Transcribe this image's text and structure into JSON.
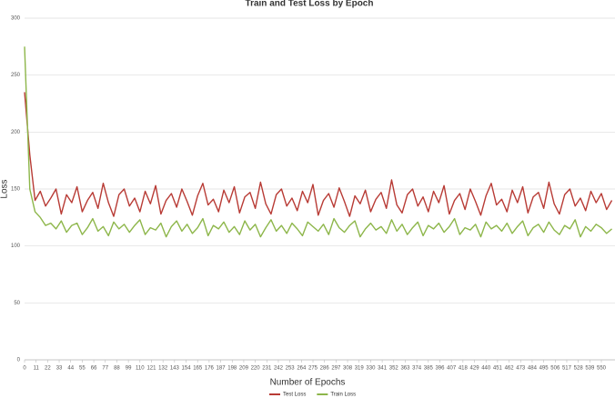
{
  "chart_data": {
    "type": "line",
    "title": "Train and Test Loss by Epoch",
    "x_label": "Number of Epochs",
    "y_label": "Loss",
    "x": [
      0,
      5,
      10,
      15,
      20,
      25,
      30,
      35,
      40,
      45,
      50,
      55,
      60,
      65,
      70,
      75,
      80,
      85,
      90,
      95,
      100,
      105,
      110,
      115,
      120,
      125,
      130,
      135,
      140,
      145,
      150,
      155,
      160,
      165,
      170,
      175,
      180,
      185,
      190,
      195,
      200,
      205,
      210,
      215,
      220,
      225,
      230,
      235,
      240,
      245,
      250,
      255,
      260,
      265,
      270,
      275,
      280,
      285,
      290,
      295,
      300,
      305,
      310,
      315,
      320,
      325,
      330,
      335,
      340,
      345,
      350,
      355,
      360,
      365,
      370,
      375,
      380,
      385,
      390,
      395,
      400,
      405,
      410,
      415,
      420,
      425,
      430,
      435,
      440,
      445,
      450,
      455,
      460,
      465,
      470,
      475,
      480,
      485,
      490,
      495,
      500,
      505,
      510,
      515,
      520,
      525,
      530,
      535,
      540,
      545,
      550,
      555,
      560
    ],
    "series": [
      {
        "name": "Test Loss",
        "color": "#b83b35",
        "values": [
          235,
          180,
          140,
          148,
          135,
          142,
          150,
          128,
          145,
          138,
          152,
          130,
          140,
          147,
          133,
          155,
          138,
          126,
          145,
          150,
          135,
          142,
          130,
          148,
          137,
          153,
          128,
          140,
          146,
          134,
          150,
          139,
          127,
          144,
          155,
          136,
          141,
          130,
          149,
          138,
          152,
          129,
          143,
          147,
          133,
          156,
          137,
          128,
          145,
          150,
          135,
          142,
          131,
          148,
          138,
          154,
          127,
          140,
          146,
          134,
          151,
          139,
          126,
          144,
          137,
          149,
          130,
          141,
          147,
          133,
          158,
          136,
          129,
          145,
          150,
          135,
          143,
          130,
          148,
          138,
          153,
          128,
          140,
          146,
          132,
          150,
          139,
          127,
          144,
          155,
          136,
          141,
          130,
          149,
          138,
          152,
          129,
          143,
          147,
          133,
          156,
          137,
          128,
          145,
          150,
          135,
          142,
          131,
          148,
          138,
          146,
          132,
          140
        ]
      },
      {
        "name": "Train Loss",
        "color": "#8db64a",
        "values": [
          275,
          150,
          130,
          125,
          118,
          120,
          115,
          122,
          112,
          118,
          120,
          110,
          116,
          124,
          113,
          117,
          109,
          121,
          115,
          119,
          112,
          118,
          123,
          110,
          116,
          114,
          120,
          108,
          117,
          122,
          113,
          119,
          111,
          116,
          124,
          109,
          118,
          115,
          121,
          112,
          117,
          110,
          122,
          114,
          119,
          108,
          116,
          123,
          113,
          118,
          111,
          120,
          115,
          109,
          121,
          117,
          113,
          119,
          110,
          124,
          116,
          112,
          118,
          122,
          108,
          115,
          120,
          114,
          117,
          111,
          123,
          113,
          119,
          110,
          116,
          121,
          109,
          118,
          115,
          120,
          112,
          117,
          124,
          110,
          116,
          114,
          119,
          108,
          121,
          115,
          118,
          113,
          120,
          111,
          117,
          122,
          109,
          116,
          119,
          112,
          121,
          114,
          110,
          118,
          115,
          123,
          108,
          117,
          113,
          119,
          116,
          111,
          115
        ]
      }
    ],
    "xlim": [
      0,
      563
    ],
    "xticks": [
      0,
      11,
      22,
      33,
      44,
      55,
      66,
      77,
      88,
      99,
      110,
      121,
      132,
      143,
      154,
      165,
      176,
      187,
      198,
      209,
      220,
      231,
      242,
      253,
      264,
      275,
      286,
      297,
      308,
      319,
      330,
      341,
      352,
      363,
      374,
      385,
      396,
      407,
      418,
      429,
      440,
      451,
      462,
      473,
      484,
      495,
      506,
      517,
      528,
      539,
      550
    ],
    "ylim": [
      0,
      300
    ],
    "yticks": [
      0,
      50,
      100,
      150,
      200,
      250,
      300
    ],
    "grid": true
  }
}
